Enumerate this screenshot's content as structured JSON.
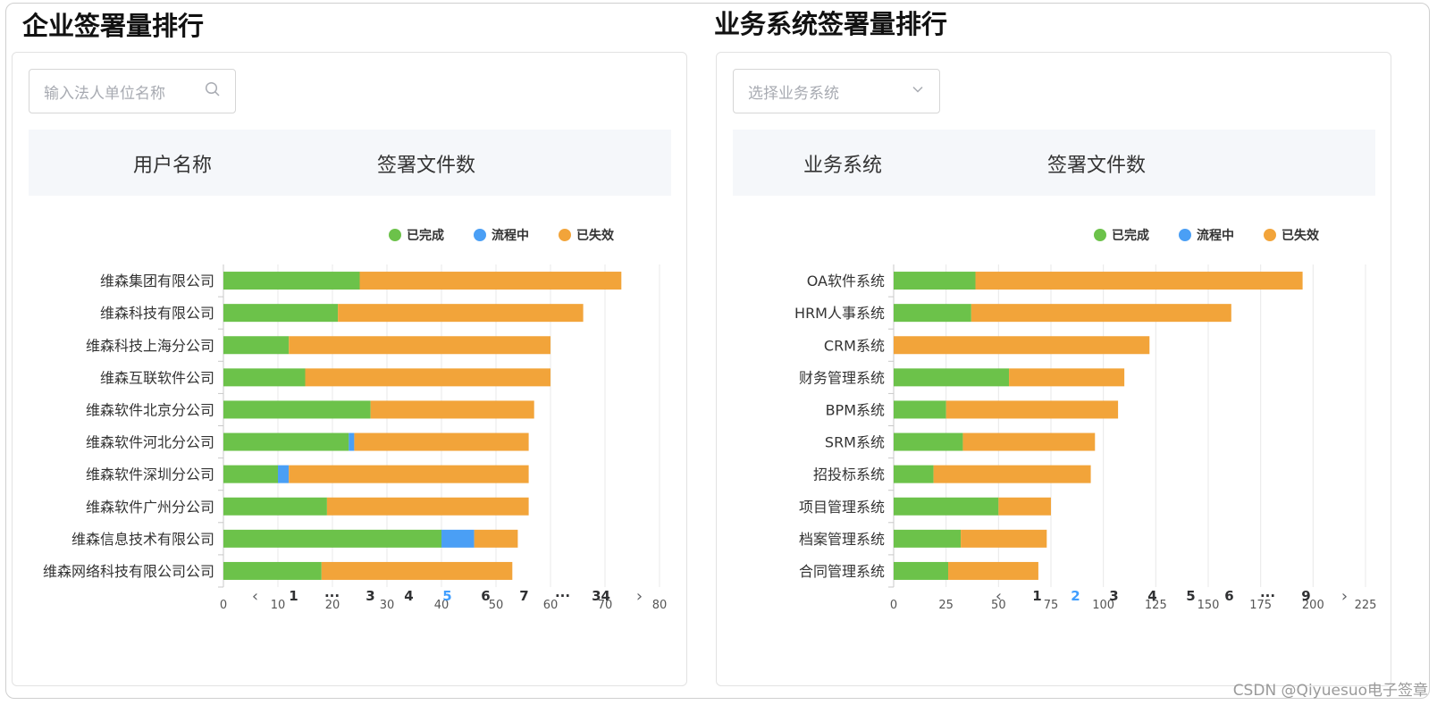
{
  "colors": {
    "completed": "#6cc24a",
    "in_progress": "#4a9ff5",
    "failed": "#f2a43a",
    "grid": "#e8e8e8",
    "axis": "#c8c8c8",
    "active_page": "#409eff"
  },
  "left": {
    "title": "企业签署量排行",
    "search_placeholder": "输入法人单位名称",
    "search_icon": "search-icon",
    "columns": [
      "用户名称",
      "签署文件数"
    ],
    "pagination": {
      "prev": "‹",
      "next": "›",
      "pages": [
        "1",
        "···",
        "3",
        "4",
        "5",
        "6",
        "7",
        "···",
        "34"
      ],
      "active": "5"
    }
  },
  "right": {
    "title": "业务系统签署量排行",
    "select_placeholder": "选择业务系统",
    "select_icon": "chevron-down-icon",
    "columns": [
      "业务系统",
      "签署文件数"
    ],
    "pagination": {
      "prev": "‹",
      "next": "›",
      "pages": [
        "1",
        "2",
        "3",
        "4",
        "5",
        "6",
        "···",
        "9"
      ],
      "active": "2"
    }
  },
  "chart_data": [
    {
      "type": "bar",
      "orientation": "horizontal",
      "stacked": true,
      "categories": [
        "维森集团有限公司",
        "维森科技有限公司",
        "维森科技上海分公司",
        "维森互联软件公司",
        "维森软件北京分公司",
        "维森软件河北分公司",
        "维森软件深圳分公司",
        "维森软件广州分公司",
        "维森信息技术有限公司",
        "维森网络科技有限公司公司"
      ],
      "series": [
        {
          "name": "已完成",
          "values": [
            25,
            21,
            12,
            15,
            27,
            23,
            10,
            19,
            40,
            18
          ]
        },
        {
          "name": "流程中",
          "values": [
            0,
            0,
            0,
            0,
            0,
            1,
            2,
            0,
            6,
            0
          ]
        },
        {
          "name": "已失效",
          "values": [
            48,
            45,
            48,
            45,
            30,
            32,
            44,
            37,
            8,
            35
          ]
        }
      ],
      "xlim": [
        0,
        80
      ],
      "xticks": [
        0,
        10,
        20,
        30,
        40,
        50,
        60,
        70,
        80
      ],
      "grid": true,
      "legend": "top-right"
    },
    {
      "type": "bar",
      "orientation": "horizontal",
      "stacked": true,
      "categories": [
        "OA软件系统",
        "HRM人事系统",
        "CRM系统",
        "财务管理系统",
        "BPM系统",
        "SRM系统",
        "招投标系统",
        "项目管理系统",
        "档案管理系统",
        "合同管理系统"
      ],
      "series": [
        {
          "name": "已完成",
          "values": [
            39,
            37,
            0,
            55,
            25,
            33,
            19,
            50,
            32,
            26
          ]
        },
        {
          "name": "流程中",
          "values": [
            0,
            0,
            0,
            0,
            0,
            0,
            0,
            0,
            0,
            0
          ]
        },
        {
          "name": "已失效",
          "values": [
            156,
            124,
            122,
            55,
            82,
            63,
            75,
            25,
            41,
            43
          ]
        }
      ],
      "xlim": [
        0,
        225
      ],
      "xticks": [
        0,
        25,
        50,
        75,
        100,
        125,
        150,
        175,
        200,
        225
      ],
      "grid": true,
      "legend": "top-right"
    }
  ],
  "watermark": "CSDN @Qiyuesuo电子签章"
}
